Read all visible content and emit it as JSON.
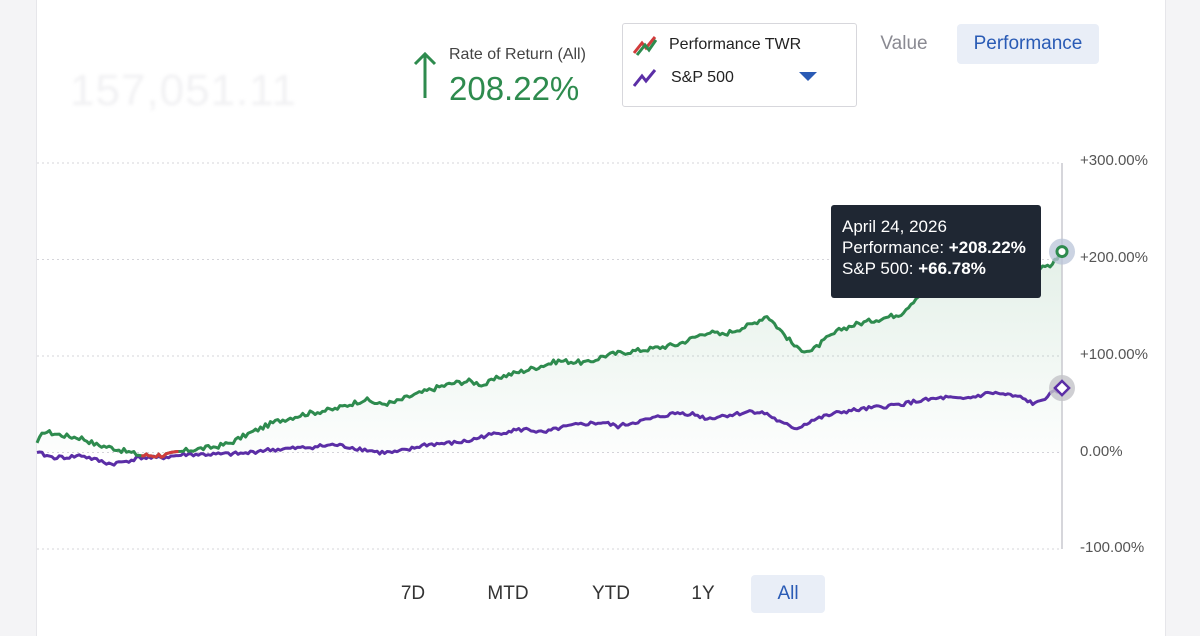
{
  "header": {
    "blurred_portfolio_value": "157,051.11",
    "rate_label": "Rate of Return (All)",
    "rate_value": "208.22%"
  },
  "legend": {
    "items": [
      {
        "label": "Performance TWR",
        "color": "#2e8b4e",
        "alt_color": "#d13b3b"
      },
      {
        "label": "S&P 500",
        "color": "#5b2ea6"
      }
    ]
  },
  "view_toggle": {
    "options": [
      "Value",
      "Performance"
    ],
    "selected": "Performance"
  },
  "tooltip": {
    "date": "April 24, 2026",
    "perf_label": "Performance: ",
    "perf_value": "+208.22%",
    "sp_label": "S&P 500: ",
    "sp_value": "+66.78%"
  },
  "time_ranges": {
    "options": [
      "7D",
      "MTD",
      "YTD",
      "1Y",
      "All"
    ],
    "selected": "All"
  },
  "colors": {
    "performance": "#2e8b4e",
    "sp500": "#5b2ea6",
    "negative": "#d13b3b",
    "accent": "#2a5bb5"
  },
  "chart_data": {
    "type": "line",
    "y_tick_labels": [
      "+300.00%",
      "+200.00%",
      "+100.00%",
      "0.00%",
      "-100.00%"
    ],
    "ylim": [
      -100,
      300
    ],
    "x_range": "All",
    "series": [
      {
        "name": "Performance TWR",
        "points": [
          [
            0,
            10
          ],
          [
            0.5,
            22
          ],
          [
            1,
            20
          ],
          [
            2,
            17
          ],
          [
            3,
            15
          ],
          [
            4,
            8
          ],
          [
            5,
            5
          ],
          [
            6,
            1
          ],
          [
            7,
            -3
          ],
          [
            8,
            -3
          ],
          [
            9,
            -2
          ],
          [
            10,
            2
          ],
          [
            11,
            4
          ],
          [
            12,
            6
          ],
          [
            13,
            10
          ],
          [
            14,
            18
          ],
          [
            15,
            25
          ],
          [
            16,
            32
          ],
          [
            17,
            36
          ],
          [
            18,
            40
          ],
          [
            20,
            45
          ],
          [
            21,
            50
          ],
          [
            22,
            55
          ],
          [
            23,
            50
          ],
          [
            24,
            52
          ],
          [
            25,
            58
          ],
          [
            27,
            68
          ],
          [
            28,
            72
          ],
          [
            29,
            74
          ],
          [
            30,
            70
          ],
          [
            31,
            78
          ],
          [
            33,
            86
          ],
          [
            35,
            95
          ],
          [
            37,
            93
          ],
          [
            38,
            100
          ],
          [
            39,
            103
          ],
          [
            41,
            107
          ],
          [
            43,
            112
          ],
          [
            45,
            125
          ],
          [
            46,
            122
          ],
          [
            48,
            133
          ],
          [
            49,
            142
          ],
          [
            50,
            125
          ],
          [
            51,
            108
          ],
          [
            52,
            105
          ],
          [
            53,
            118
          ],
          [
            54,
            128
          ],
          [
            55,
            133
          ],
          [
            57,
            140
          ],
          [
            58,
            144
          ],
          [
            59,
            160
          ],
          [
            60,
            175
          ],
          [
            61,
            188
          ],
          [
            63,
            190
          ],
          [
            64,
            195
          ],
          [
            65,
            190
          ],
          [
            66,
            178
          ],
          [
            67,
            190
          ],
          [
            68,
            193
          ],
          [
            68.8,
            208.22
          ]
        ]
      },
      {
        "name": "S&P 500",
        "points": [
          [
            0,
            0
          ],
          [
            1,
            -5
          ],
          [
            2,
            -5
          ],
          [
            3,
            -3
          ],
          [
            4,
            -8
          ],
          [
            5,
            -12
          ],
          [
            6,
            -9
          ],
          [
            7,
            -5
          ],
          [
            8,
            -6
          ],
          [
            9,
            -4
          ],
          [
            10,
            -2
          ],
          [
            12,
            -2
          ],
          [
            14,
            -1
          ],
          [
            15,
            2
          ],
          [
            16,
            3
          ],
          [
            18,
            5
          ],
          [
            20,
            8
          ],
          [
            22,
            3
          ],
          [
            23,
            0
          ],
          [
            24,
            0
          ],
          [
            25,
            3
          ],
          [
            26,
            8
          ],
          [
            28,
            10
          ],
          [
            29,
            12
          ],
          [
            30,
            17
          ],
          [
            31,
            20
          ],
          [
            32,
            23
          ],
          [
            33,
            24
          ],
          [
            34,
            20
          ],
          [
            35,
            25
          ],
          [
            36,
            28
          ],
          [
            37,
            30
          ],
          [
            38,
            31
          ],
          [
            39,
            27
          ],
          [
            40,
            31
          ],
          [
            41,
            34
          ],
          [
            42,
            38
          ],
          [
            43,
            41
          ],
          [
            44,
            40
          ],
          [
            45,
            35
          ],
          [
            46,
            38
          ],
          [
            47,
            40
          ],
          [
            48,
            43
          ],
          [
            49,
            40
          ],
          [
            50,
            30
          ],
          [
            51,
            25
          ],
          [
            52,
            33
          ],
          [
            53,
            38
          ],
          [
            54,
            42
          ],
          [
            55,
            44
          ],
          [
            56,
            46
          ],
          [
            57,
            48
          ],
          [
            58,
            50
          ],
          [
            59,
            53
          ],
          [
            60,
            55
          ],
          [
            61,
            57
          ],
          [
            62,
            55
          ],
          [
            63,
            58
          ],
          [
            64,
            62
          ],
          [
            65,
            60
          ],
          [
            66,
            57
          ],
          [
            67,
            50
          ],
          [
            68,
            60
          ],
          [
            68.8,
            66.78
          ]
        ]
      }
    ],
    "negative_segment_of": "Performance TWR",
    "negative_segment_x": [
      7,
      9.5
    ]
  }
}
